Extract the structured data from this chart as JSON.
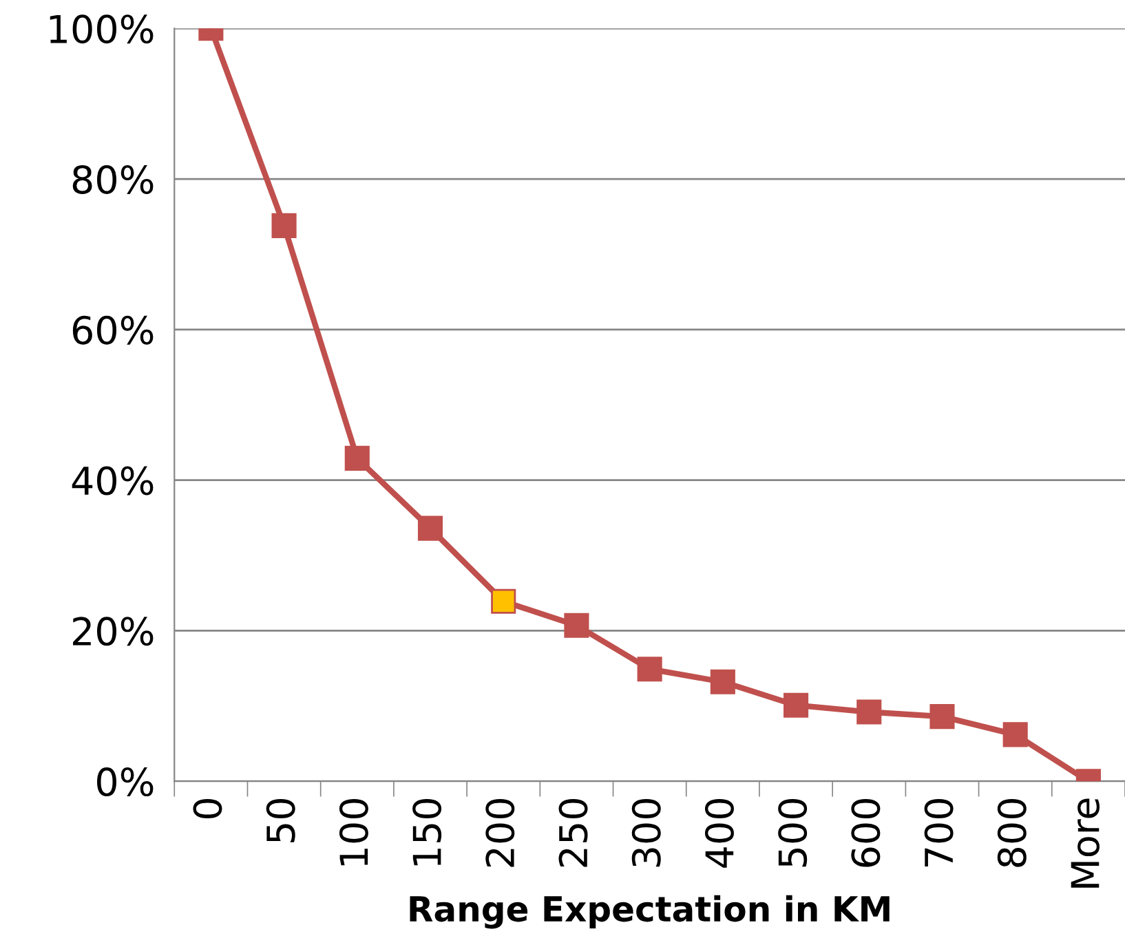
{
  "chart_data": {
    "type": "line",
    "xlabel": "Range Expectation in KM",
    "categories": [
      "0",
      "50",
      "100",
      "150",
      "200",
      "250",
      "300",
      "400",
      "500",
      "600",
      "700",
      "800",
      "More"
    ],
    "series": [
      {
        "color": "#c0504d",
        "values": [
          100,
          73.8,
          42.9,
          33.6,
          23.9,
          20.7,
          14.9,
          13.2,
          10.1,
          9.2,
          8.6,
          6.2,
          0
        ],
        "colors": [
          "#c0504d",
          "#c0504d",
          "#c0504d",
          "#c0504d",
          "#ffc000",
          "#c0504d",
          "#c0504d",
          "#c0504d",
          "#c0504d",
          "#c0504d",
          "#c0504d",
          "#c0504d",
          "#c0504d"
        ]
      }
    ],
    "ylim": [
      0,
      100
    ],
    "yticks": [
      {
        "value": 0,
        "label": "0%"
      },
      {
        "value": 20,
        "label": "20%"
      },
      {
        "value": 40,
        "label": "40%"
      },
      {
        "value": 60,
        "label": "60%"
      },
      {
        "value": 80,
        "label": "80%"
      },
      {
        "value": 100,
        "label": "100%"
      }
    ],
    "grid": "y",
    "marker": "square",
    "line_style": "solid"
  }
}
